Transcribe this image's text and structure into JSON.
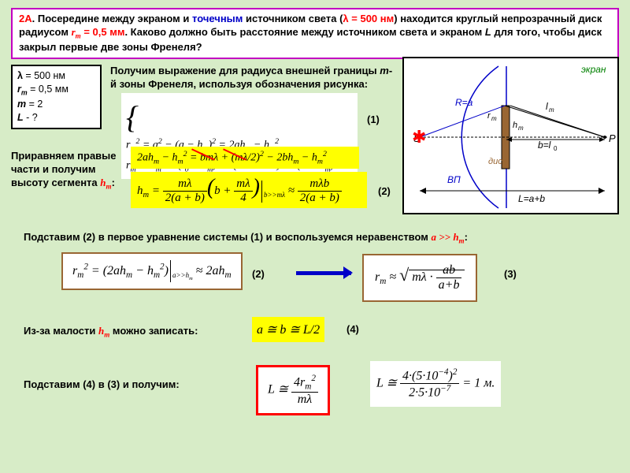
{
  "problem": {
    "num": "2A",
    "text_a": ". Посередине между экраном и ",
    "text_b": "точечным",
    "text_c": " источником света (",
    "lambda": "λ = 500 нм",
    "text_d": ") находится круглый непрозрачный диск радиусом ",
    "rm": "r",
    "rm_sub": "m",
    "rm_val": " = 0,5 мм",
    "text_e": ". Каково должно быть расстояние между источником света и экраном ",
    "L": "L",
    "text_f": " для того, чтобы диск закрыл первые две зоны Френеля?"
  },
  "given": {
    "l1_a": "λ",
    "l1_b": " = 500 нм",
    "l2_a": "r",
    "l2_sub": "m",
    "l2_b": " = 0,5 мм",
    "l3_a": "m",
    "l3_b": " = 2",
    "l4_a": "L",
    "l4_b": " - ?"
  },
  "tb1_a": "Получим выражение для радиуса внешней границы ",
  "tb1_m": "m",
  "tb1_b": "-й зоны Френеля, используя обозначения рисунка:",
  "tb2_a": "Приравняем правые части и получим высоту сегмента ",
  "tb2_h": "h",
  "tb2_sub": "m",
  "tb2_b": ":",
  "tb3_a": "Подставим (2) в первое уравнение системы (1) и воспользуемся неравенством ",
  "tb3_b": "a >> h",
  "tb3_sub": "m",
  "tb3_c": ":",
  "tb4_a": "Из-за малости ",
  "tb4_h": "h",
  "tb4_sub": "m",
  "tb4_b": " можно записать:",
  "tb5": "Подставим (4) в (3) и получим:",
  "labels": {
    "l1": "(1)",
    "l2": "(2)",
    "l3": "(2)",
    "l4": "(3)",
    "l5": "(4)"
  },
  "eq1_line1": "r<sub>m</sub><sup>2</sup> = a<sup>2</sup> − (a − h<sub>m</sub>)<sup>2</sup> = 2ah<sub>m</sub> − h<sub>m</sub><sup>2</sup>",
  "eq1_line2": "r<sub>m</sub><sup>2</sup> = l<sub>m</sub><sup>2</sup> − (l<sub>0</sub> + h<sub>m</sub>)<sup>2</sup> = (b + mλ/2)<sup>2</sup> − (b + h<sub>m</sub>)<sup>2</sup>",
  "eq2_top": "2ah<sub>m</sub> − h<sub>m</sub><sup>2</sup> = bmλ + (mλ/2)<sup>2</sup> − 2bh<sub>m</sub> − h<sub>m</sub><sup>2</sup>",
  "eq2_bot_pre": "h<sub>m</sub> = ",
  "eq2_frac1_n": "mλ",
  "eq2_frac1_d": "2(a + b)",
  "eq2_mid": "(b + ",
  "eq2_frac2_n": "mλ",
  "eq2_frac2_d": "4",
  "eq2_mid2": ")",
  "eq2_cond": "b>>mλ",
  "eq2_approx": " ≈ ",
  "eq2_frac3_n": "mλb",
  "eq2_frac3_d": "2(a + b)",
  "eq3_a": "r<sub>m</sub><sup>2</sup> = (2ah<sub>m</sub> − h<sub>m</sub><sup>2</sup>)",
  "eq3_cond": "a>>h<sub>m</sub>",
  "eq3_b": " ≈ 2ah<sub>m</sub>",
  "eq4_a": "r<sub>m</sub> ≈ ",
  "eq4_in": "mλ · ",
  "eq4_frac_n": "ab",
  "eq4_frac_d": "a+b",
  "eq5": "a ≅ b ≅ L/2",
  "eq6_a": "L ≅ ",
  "eq6_n": "4r<sub>m</sub><sup>2</sup>",
  "eq6_d": "mλ",
  "eq7_a": "L ≅ ",
  "eq7_n": "4·(5·10<sup>−4</sup>)<sup>2</sup>",
  "eq7_d": "2·5·10<sup>−7</sup>",
  "eq7_b": " = 1 м.",
  "diagram": {
    "screen": "экран",
    "R": "R=a",
    "rm": "r<sub>m</sub>",
    "lm": "l<sub>m</sub>",
    "hm": "h<sub>m</sub>",
    "S": "S",
    "P": "P",
    "b": "b=l<sub>0</sub>",
    "disk": "диск",
    "VP": "ВП",
    "L": "L=a+b"
  }
}
